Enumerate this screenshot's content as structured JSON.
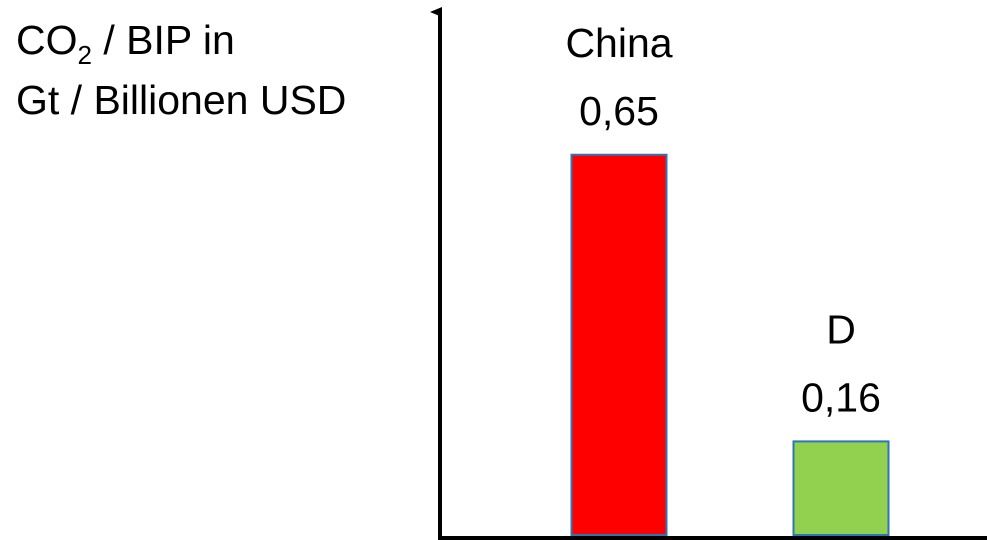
{
  "chart_data": {
    "type": "bar",
    "title": "",
    "ylabel": {
      "prefix": "CO",
      "subscript": "2",
      "suffix": " / BIP in",
      "line2": "Gt / Billionen USD"
    },
    "xlabel": "",
    "categories": [
      "China",
      "D"
    ],
    "values": [
      0.65,
      0.16
    ],
    "value_labels": [
      "0,65",
      "0,16"
    ],
    "colors": [
      "#ff0000",
      "#92d050"
    ],
    "bar_border_color": "#2e75b6",
    "ylim": [
      0,
      0.75
    ],
    "grid": false,
    "legend": "none"
  }
}
